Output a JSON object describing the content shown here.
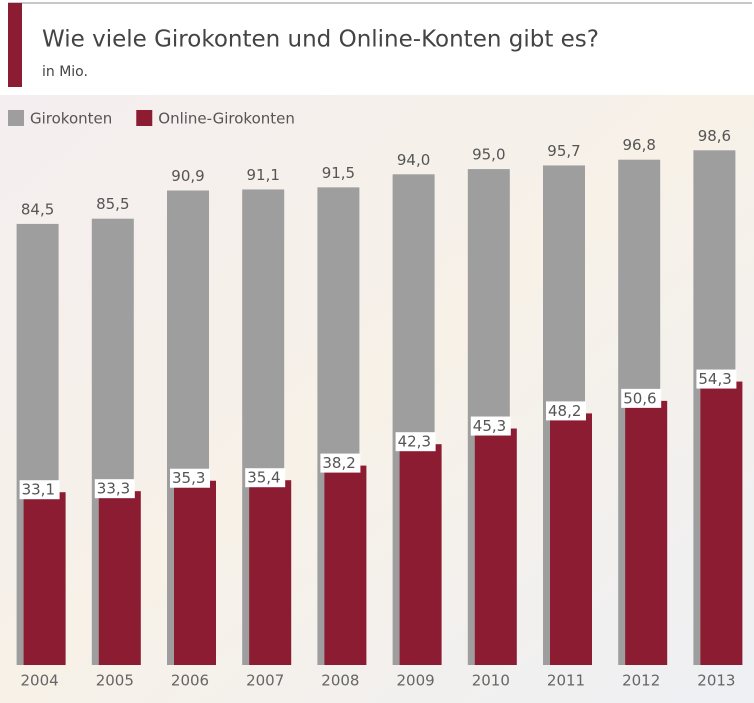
{
  "chart_data": {
    "type": "bar",
    "title": "Wie viele Girokonten und Online-Konten gibt es?",
    "subtitle": "in Mio.",
    "categories": [
      "2004",
      "2005",
      "2006",
      "2007",
      "2008",
      "2009",
      "2010",
      "2011",
      "2012",
      "2013"
    ],
    "series": [
      {
        "name": "Girokonten",
        "color": "#9e9e9e",
        "values": [
          84.5,
          85.5,
          90.9,
          91.1,
          91.5,
          94.0,
          95.0,
          95.7,
          96.8,
          98.6
        ],
        "value_labels": [
          "84,5",
          "85,5",
          "90,9",
          "91,1",
          "91,5",
          "94,0",
          "95,0",
          "95,7",
          "96,8",
          "98,6"
        ]
      },
      {
        "name": "Online-Girokonten",
        "color": "#8c1c31",
        "values": [
          33.1,
          33.3,
          35.3,
          35.4,
          38.2,
          42.3,
          45.3,
          48.2,
          50.6,
          54.3
        ],
        "value_labels": [
          "33,1",
          "33,3",
          "35,3",
          "35,4",
          "38,2",
          "42,3",
          "45,3",
          "48,2",
          "50,6",
          "54,3"
        ]
      }
    ],
    "ylim": [
      0,
      100
    ]
  }
}
